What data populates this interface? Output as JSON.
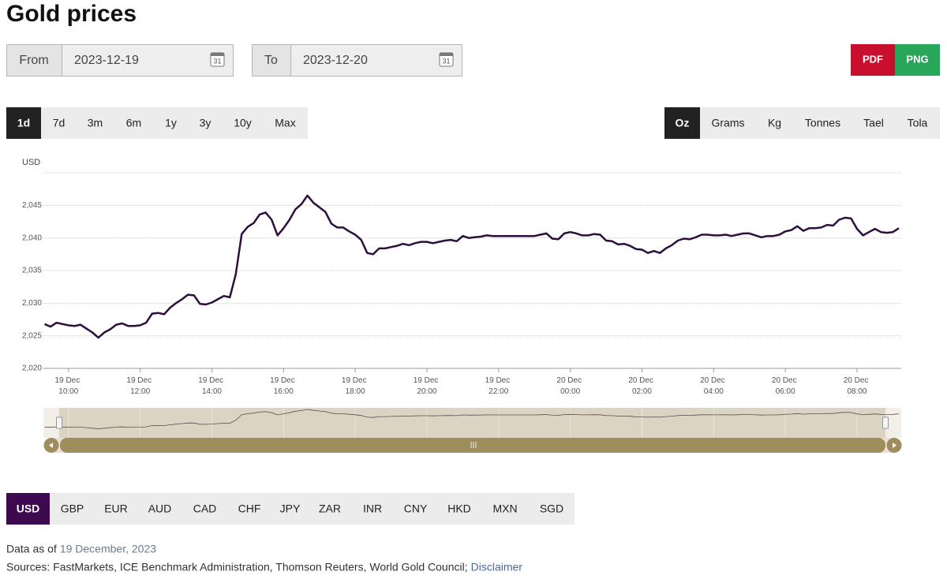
{
  "header": {
    "title": "Gold prices"
  },
  "date_range": {
    "from_label": "From",
    "from": "2023-12-19",
    "to_label": "To",
    "to": "2023-12-20",
    "calendar_icon": "31"
  },
  "export_buttons": [
    "PDF",
    "PNG"
  ],
  "range_buttons": {
    "items": [
      "1d",
      "7d",
      "3m",
      "6m",
      "1y",
      "3y",
      "10y",
      "Max"
    ],
    "selected": 0
  },
  "unit_buttons": {
    "items": [
      "Oz",
      "Grams",
      "Kg",
      "Tonnes",
      "Tael",
      "Tola"
    ],
    "selected": 0
  },
  "chart_data": {
    "type": "line",
    "y_label": "USD",
    "color": "#2d0f3e",
    "grid": true,
    "xlim": [
      "19 Dec 09:18",
      "20 Dec 09:14"
    ],
    "xticks": [
      "19 Dec 10:00",
      "19 Dec 12:00",
      "19 Dec 14:00",
      "19 Dec 16:00",
      "19 Dec 18:00",
      "19 Dec 20:00",
      "19 Dec 22:00",
      "20 Dec 00:00",
      "20 Dec 02:00",
      "20 Dec 04:00",
      "20 Dec 06:00",
      "20 Dec 08:00"
    ],
    "ylim": [
      2020,
      2050
    ],
    "yticks": [
      {
        "value": 2020,
        "label": "2,020"
      },
      {
        "value": 2025,
        "label": "2,025"
      },
      {
        "value": 2030,
        "label": "2,030"
      },
      {
        "value": 2035,
        "label": "2,035"
      },
      {
        "value": 2040,
        "label": "2,040"
      },
      {
        "value": 2045,
        "label": "2,045"
      }
    ],
    "x": [
      "19 Dec 09:20",
      "19 Dec 09:30",
      "19 Dec 09:40",
      "19 Dec 09:50",
      "19 Dec 10:00",
      "19 Dec 10:10",
      "19 Dec 10:20",
      "19 Dec 10:30",
      "19 Dec 10:40",
      "19 Dec 10:50",
      "19 Dec 11:00",
      "19 Dec 11:10",
      "19 Dec 11:20",
      "19 Dec 11:30",
      "19 Dec 11:40",
      "19 Dec 11:50",
      "19 Dec 12:00",
      "19 Dec 12:10",
      "19 Dec 12:20",
      "19 Dec 12:30",
      "19 Dec 12:40",
      "19 Dec 12:50",
      "19 Dec 13:00",
      "19 Dec 13:10",
      "19 Dec 13:20",
      "19 Dec 13:30",
      "19 Dec 13:40",
      "19 Dec 13:50",
      "19 Dec 14:00",
      "19 Dec 14:10",
      "19 Dec 14:20",
      "19 Dec 14:30",
      "19 Dec 14:40",
      "19 Dec 14:50",
      "19 Dec 15:00",
      "19 Dec 15:10",
      "19 Dec 15:20",
      "19 Dec 15:30",
      "19 Dec 15:40",
      "19 Dec 15:50",
      "19 Dec 16:00",
      "19 Dec 16:10",
      "19 Dec 16:20",
      "19 Dec 16:30",
      "19 Dec 16:40",
      "19 Dec 16:50",
      "19 Dec 17:00",
      "19 Dec 17:10",
      "19 Dec 17:20",
      "19 Dec 17:30",
      "19 Dec 17:40",
      "19 Dec 17:50",
      "19 Dec 18:00",
      "19 Dec 18:10",
      "19 Dec 18:20",
      "19 Dec 18:30",
      "19 Dec 18:40",
      "19 Dec 18:50",
      "19 Dec 19:00",
      "19 Dec 19:10",
      "19 Dec 19:20",
      "19 Dec 19:30",
      "19 Dec 19:40",
      "19 Dec 19:50",
      "19 Dec 20:00",
      "19 Dec 20:10",
      "19 Dec 20:20",
      "19 Dec 20:30",
      "19 Dec 20:40",
      "19 Dec 20:50",
      "19 Dec 21:00",
      "19 Dec 21:10",
      "19 Dec 21:20",
      "19 Dec 21:30",
      "19 Dec 21:40",
      "19 Dec 21:50",
      "19 Dec 22:00",
      "19 Dec 22:10",
      "19 Dec 22:20",
      "19 Dec 22:30",
      "19 Dec 22:40",
      "19 Dec 22:50",
      "19 Dec 23:00",
      "19 Dec 23:10",
      "19 Dec 23:20",
      "19 Dec 23:30",
      "19 Dec 23:40",
      "19 Dec 23:50",
      "20 Dec 00:00",
      "20 Dec 00:10",
      "20 Dec 00:20",
      "20 Dec 00:30",
      "20 Dec 00:40",
      "20 Dec 00:50",
      "20 Dec 01:00",
      "20 Dec 01:10",
      "20 Dec 01:20",
      "20 Dec 01:30",
      "20 Dec 01:40",
      "20 Dec 01:50",
      "20 Dec 02:00",
      "20 Dec 02:10",
      "20 Dec 02:20",
      "20 Dec 02:30",
      "20 Dec 02:40",
      "20 Dec 02:50",
      "20 Dec 03:00",
      "20 Dec 03:10",
      "20 Dec 03:20",
      "20 Dec 03:30",
      "20 Dec 03:40",
      "20 Dec 03:50",
      "20 Dec 04:00",
      "20 Dec 04:10",
      "20 Dec 04:20",
      "20 Dec 04:30",
      "20 Dec 04:40",
      "20 Dec 04:50",
      "20 Dec 05:00",
      "20 Dec 05:10",
      "20 Dec 05:20",
      "20 Dec 05:30",
      "20 Dec 05:40",
      "20 Dec 05:50",
      "20 Dec 06:00",
      "20 Dec 06:10",
      "20 Dec 06:20",
      "20 Dec 06:30",
      "20 Dec 06:40",
      "20 Dec 06:50",
      "20 Dec 07:00",
      "20 Dec 07:10",
      "20 Dec 07:20",
      "20 Dec 07:30",
      "20 Dec 07:40",
      "20 Dec 07:50",
      "20 Dec 08:00",
      "20 Dec 08:10",
      "20 Dec 08:20",
      "20 Dec 08:30",
      "20 Dec 08:40",
      "20 Dec 08:50",
      "20 Dec 09:00",
      "20 Dec 09:10"
    ],
    "values": [
      2026.8,
      2026.4,
      2027.0,
      2026.8,
      2026.6,
      2026.5,
      2026.7,
      2026.1,
      2025.5,
      2024.7,
      2025.5,
      2026.0,
      2026.7,
      2026.9,
      2026.5,
      2026.5,
      2026.6,
      2027.0,
      2028.4,
      2028.5,
      2028.3,
      2029.3,
      2030.0,
      2030.6,
      2031.3,
      2031.2,
      2029.9,
      2029.8,
      2030.1,
      2030.6,
      2031.1,
      2030.9,
      2034.4,
      2040.6,
      2041.7,
      2042.3,
      2043.6,
      2043.9,
      2042.8,
      2040.4,
      2041.5,
      2042.8,
      2044.4,
      2045.2,
      2046.5,
      2045.4,
      2044.7,
      2044.0,
      2042.2,
      2041.6,
      2041.6,
      2041.0,
      2040.5,
      2039.7,
      2037.7,
      2037.5,
      2038.4,
      2038.4,
      2038.6,
      2038.8,
      2039.1,
      2038.9,
      2039.2,
      2039.4,
      2039.4,
      2039.2,
      2039.4,
      2039.6,
      2039.7,
      2039.5,
      2040.3,
      2040.0,
      2040.1,
      2040.2,
      2040.4,
      2040.3,
      2040.3,
      2040.3,
      2040.3,
      2040.3,
      2040.3,
      2040.3,
      2040.3,
      2040.5,
      2040.7,
      2039.9,
      2039.8,
      2040.7,
      2040.9,
      2040.7,
      2040.4,
      2040.4,
      2040.6,
      2040.5,
      2039.6,
      2039.5,
      2039.0,
      2039.1,
      2038.8,
      2038.3,
      2038.2,
      2037.7,
      2038.0,
      2037.7,
      2038.4,
      2038.9,
      2039.6,
      2039.9,
      2039.8,
      2040.1,
      2040.5,
      2040.5,
      2040.4,
      2040.4,
      2040.5,
      2040.3,
      2040.5,
      2040.7,
      2040.7,
      2040.4,
      2040.1,
      2040.3,
      2040.3,
      2040.5,
      2041.0,
      2041.2,
      2041.8,
      2041.1,
      2041.5,
      2041.5,
      2041.6,
      2042.0,
      2041.9,
      2042.8,
      2043.1,
      2043.0,
      2041.4,
      2040.4,
      2040.9,
      2041.4,
      2040.9,
      2040.8,
      2040.9,
      2041.5
    ]
  },
  "currency_buttons": {
    "items": [
      "USD",
      "GBP",
      "EUR",
      "AUD",
      "CAD",
      "CHF",
      "JPY",
      "ZAR",
      "INR",
      "CNY",
      "HKD",
      "MXN",
      "SGD"
    ],
    "selected": 0
  },
  "footer": {
    "data_as_of_label": "Data as of",
    "data_as_of": "19 December, 2023",
    "sources": "Sources: FastMarkets, ICE Benchmark Administration, Thomson Reuters, World Gold Council;",
    "disclaimer": "Disclaimer"
  }
}
